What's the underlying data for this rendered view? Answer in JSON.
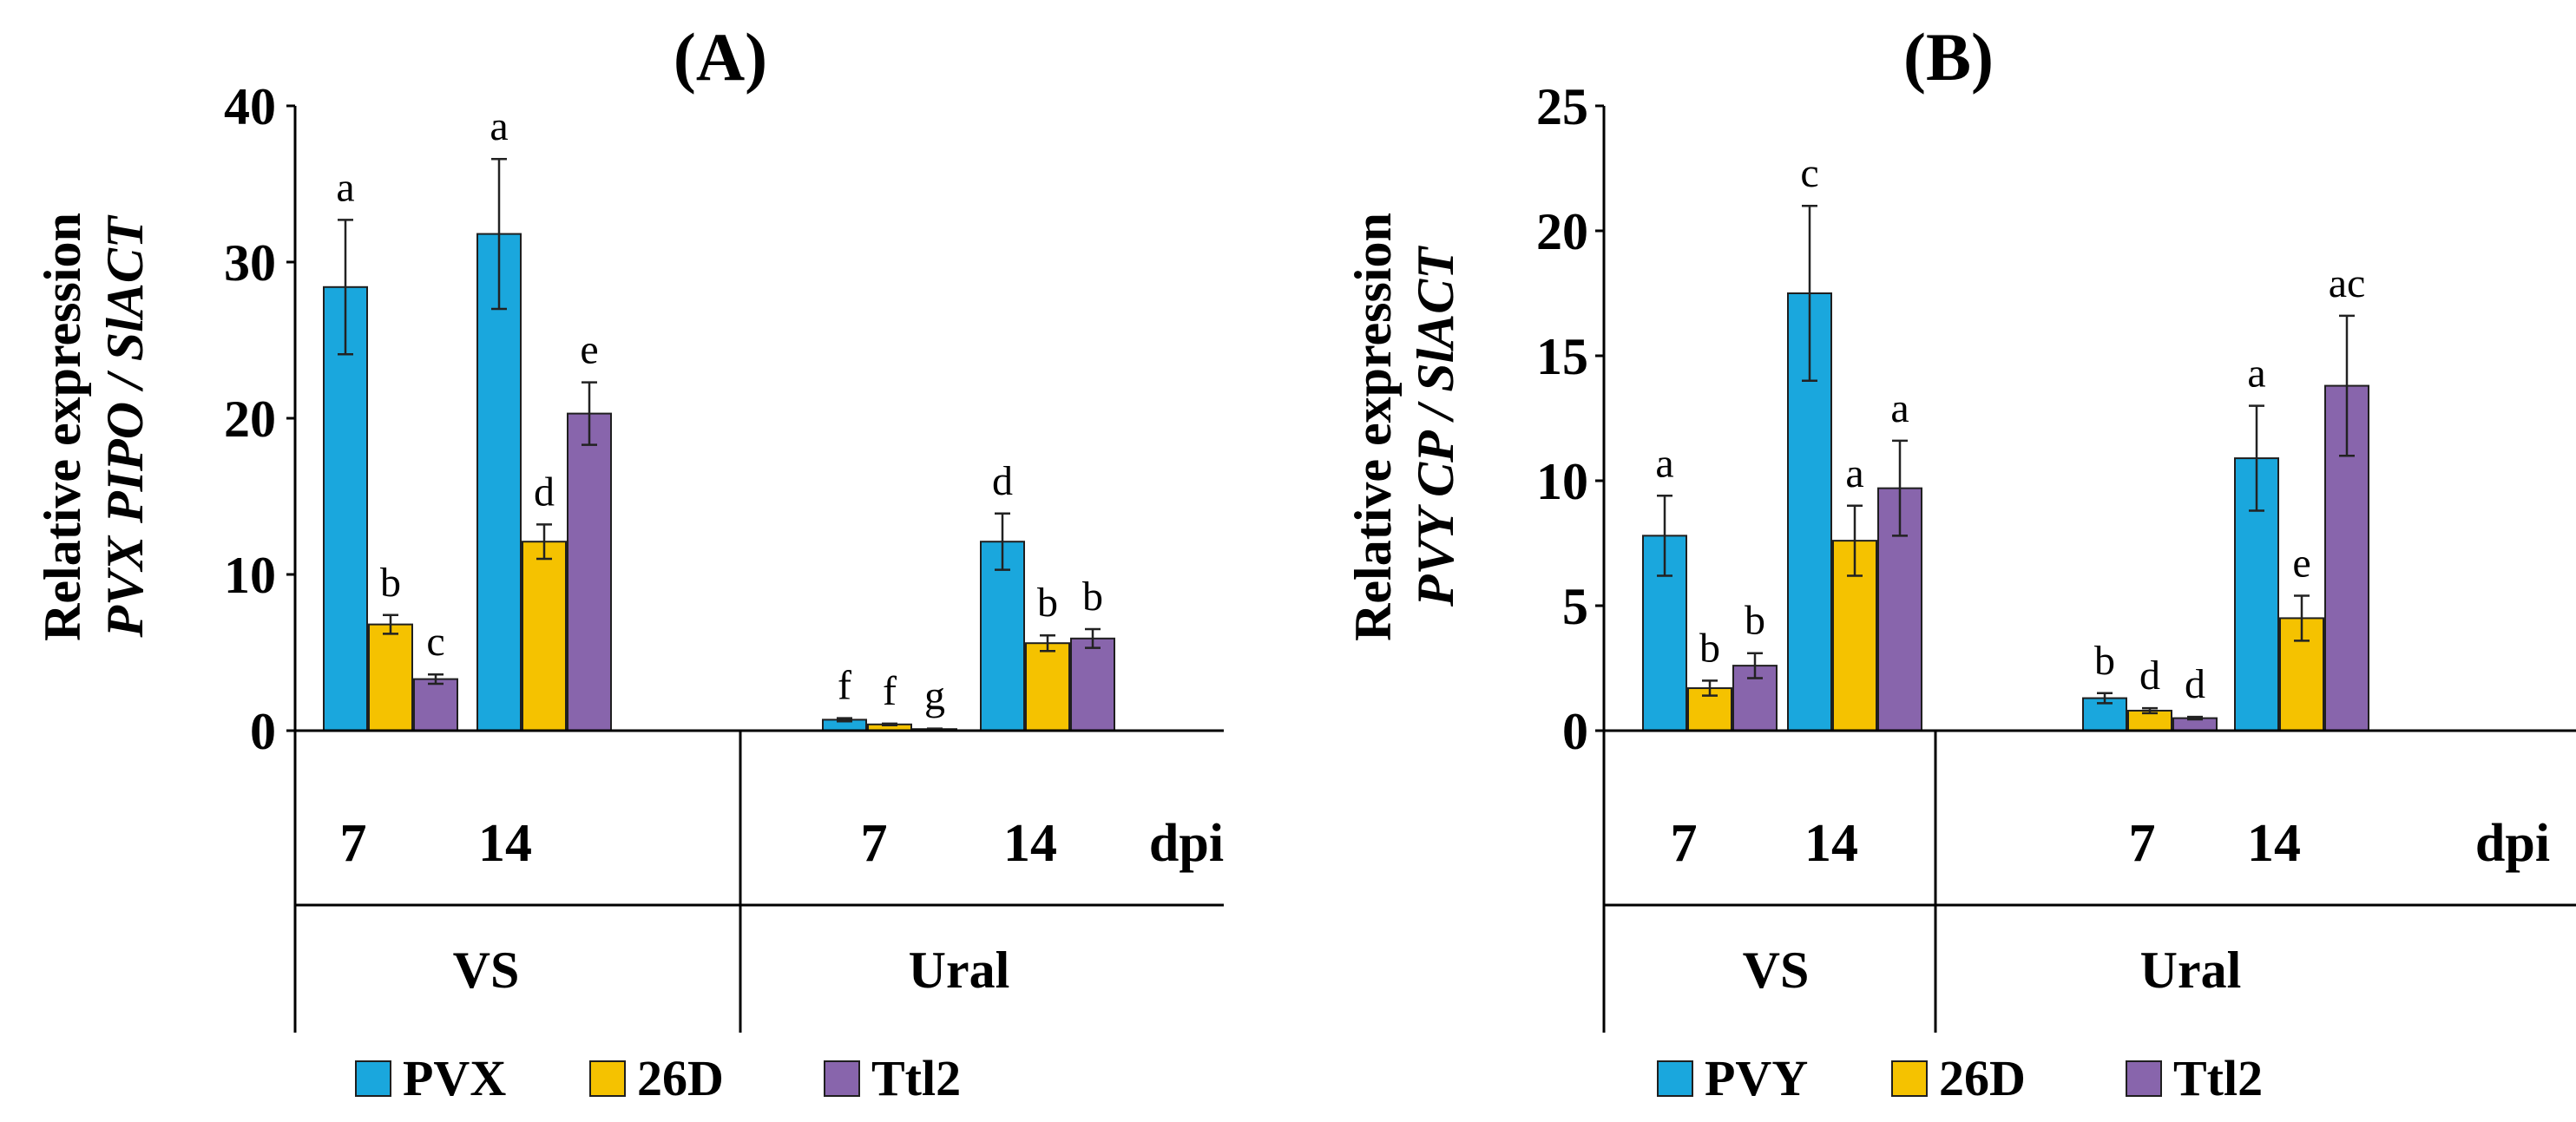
{
  "colors": {
    "series": [
      "#1aa7dd",
      "#f5c200",
      "#8865ac"
    ],
    "outline": "#1f1f1f",
    "axis": "#000000"
  },
  "chart_data": [
    {
      "type": "bar",
      "title": "(A)",
      "ylabel_line1": "Relative expression",
      "ylabel_line2": "PVX PIPO / SlACT",
      "xlabel": "dpi",
      "ylim": [
        0,
        40
      ],
      "yticks": [
        "0",
        "10",
        "20",
        "30",
        "40"
      ],
      "ytick_values": [
        0,
        10,
        20,
        30,
        40
      ],
      "groups": [
        {
          "label": "VS",
          "categories": [
            "7",
            "14"
          ]
        },
        {
          "label": "Ural",
          "categories": [
            "7",
            "14"
          ]
        }
      ],
      "series": [
        {
          "name": "PVX",
          "values": [
            28.4,
            31.8,
            0.7,
            12.1
          ],
          "errors": [
            4.3,
            4.8,
            0.1,
            1.8
          ],
          "sig": [
            "a",
            "a",
            "f",
            "d"
          ]
        },
        {
          "name": "26D",
          "values": [
            6.8,
            12.1,
            0.4,
            5.6
          ],
          "errors": [
            0.6,
            1.1,
            0.05,
            0.5
          ],
          "sig": [
            "b",
            "d",
            "f",
            "b"
          ]
        },
        {
          "name": "Ttl2",
          "values": [
            3.3,
            20.3,
            0.1,
            5.9
          ],
          "errors": [
            0.3,
            2.0,
            0.03,
            0.6
          ],
          "sig": [
            "c",
            "e",
            "g",
            "b"
          ]
        }
      ],
      "legend": [
        "PVX",
        "26D",
        "Ttl2"
      ]
    },
    {
      "type": "bar",
      "title": "(B)",
      "ylabel_line1": "Relative expression",
      "ylabel_line2": "PVY CP / SlACT",
      "xlabel": "dpi",
      "ylim": [
        0,
        25
      ],
      "yticks": [
        "0",
        "5",
        "10",
        "15",
        "20",
        "25"
      ],
      "ytick_values": [
        0,
        5,
        10,
        15,
        20,
        25
      ],
      "groups": [
        {
          "label": "VS",
          "categories": [
            "7",
            "14"
          ]
        },
        {
          "label": "Ural",
          "categories": [
            "7",
            "14"
          ]
        }
      ],
      "series": [
        {
          "name": "PVY",
          "values": [
            7.8,
            17.5,
            1.3,
            10.9
          ],
          "errors": [
            1.6,
            3.5,
            0.2,
            2.1
          ],
          "sig": [
            "a",
            "c",
            "b",
            "a"
          ]
        },
        {
          "name": "26D",
          "values": [
            1.7,
            7.6,
            0.8,
            4.5
          ],
          "errors": [
            0.3,
            1.4,
            0.1,
            0.9
          ],
          "sig": [
            "b",
            "a",
            "d",
            "e"
          ]
        },
        {
          "name": "Ttl2",
          "values": [
            2.6,
            9.7,
            0.5,
            13.8
          ],
          "errors": [
            0.5,
            1.9,
            0.05,
            2.8
          ],
          "sig": [
            "b",
            "a",
            "d",
            "ac"
          ]
        }
      ],
      "legend": [
        "PVY",
        "26D",
        "Ttl2"
      ]
    }
  ]
}
